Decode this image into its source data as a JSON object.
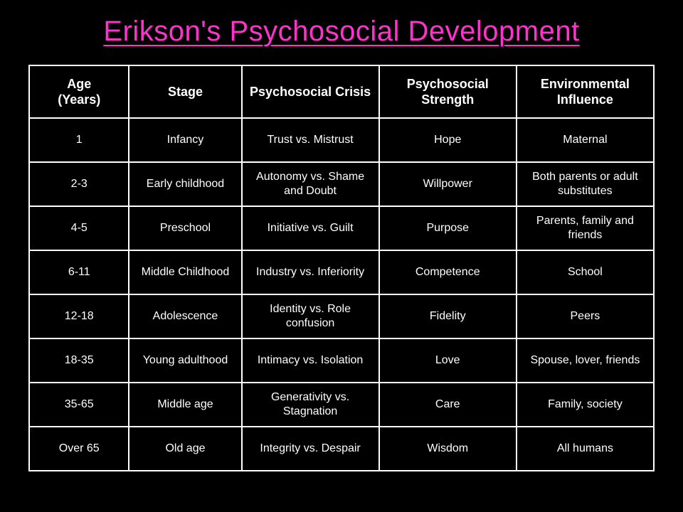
{
  "title": {
    "text": "Erikson's Psychosocial Development",
    "color": "#ff33cc",
    "fontsize": 40
  },
  "table": {
    "type": "table",
    "background_color": "#000000",
    "border_color": "#ffffff",
    "text_color": "#ffffff",
    "header_fontsize": 18,
    "cell_fontsize": 16,
    "columns": [
      {
        "label_line1": "Age",
        "label_line2": "(Years)",
        "width_pct": 16
      },
      {
        "label_line1": "Stage",
        "label_line2": "",
        "width_pct": 18
      },
      {
        "label_line1": "Psychosocial Crisis",
        "label_line2": "",
        "width_pct": 22
      },
      {
        "label_line1": "Psychosocial Strength",
        "label_line2": "",
        "width_pct": 22
      },
      {
        "label_line1": "Environmental Influence",
        "label_line2": "",
        "width_pct": 22
      }
    ],
    "rows": [
      [
        "1",
        "Infancy",
        "Trust vs. Mistrust",
        "Hope",
        "Maternal"
      ],
      [
        "2-3",
        "Early childhood",
        "Autonomy vs. Shame and Doubt",
        "Willpower",
        "Both parents or adult substitutes"
      ],
      [
        "4-5",
        "Preschool",
        "Initiative vs. Guilt",
        "Purpose",
        "Parents, family and friends"
      ],
      [
        "6-11",
        "Middle Childhood",
        "Industry vs. Inferiority",
        "Competence",
        "School"
      ],
      [
        "12-18",
        "Adolescence",
        "Identity vs. Role confusion",
        "Fidelity",
        "Peers"
      ],
      [
        "18-35",
        "Young adulthood",
        "Intimacy vs. Isolation",
        "Love",
        "Spouse, lover, friends"
      ],
      [
        "35-65",
        "Middle age",
        "Generativity vs. Stagnation",
        "Care",
        "Family, society"
      ],
      [
        "Over 65",
        "Old age",
        "Integrity vs. Despair",
        "Wisdom",
        "All humans"
      ]
    ]
  }
}
